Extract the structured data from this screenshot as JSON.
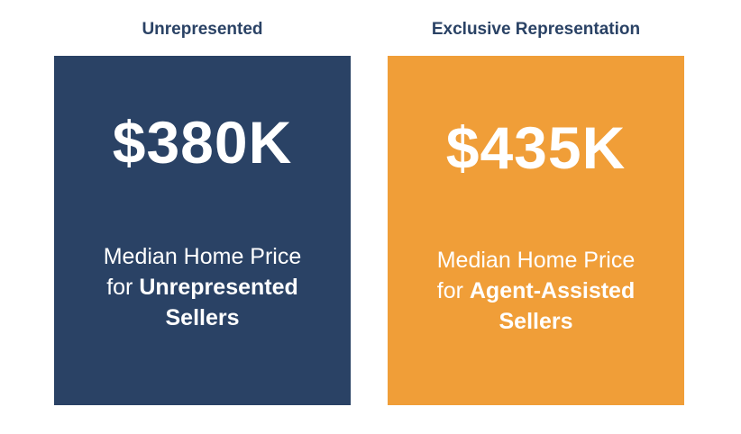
{
  "panels": [
    {
      "title": "Unrepresented",
      "value": "$380K",
      "desc_line1": "Median Home Price",
      "desc_prefix": "for ",
      "desc_bold1": "Unrepresented",
      "desc_bold2": "Sellers",
      "color": "#2a4265"
    },
    {
      "title": "Exclusive Representation",
      "value": "$435K",
      "desc_line1": "Median Home Price",
      "desc_prefix": "for ",
      "desc_bold1": "Agent-Assisted",
      "desc_bold2": "Sellers",
      "color": "#f09e38"
    }
  ]
}
